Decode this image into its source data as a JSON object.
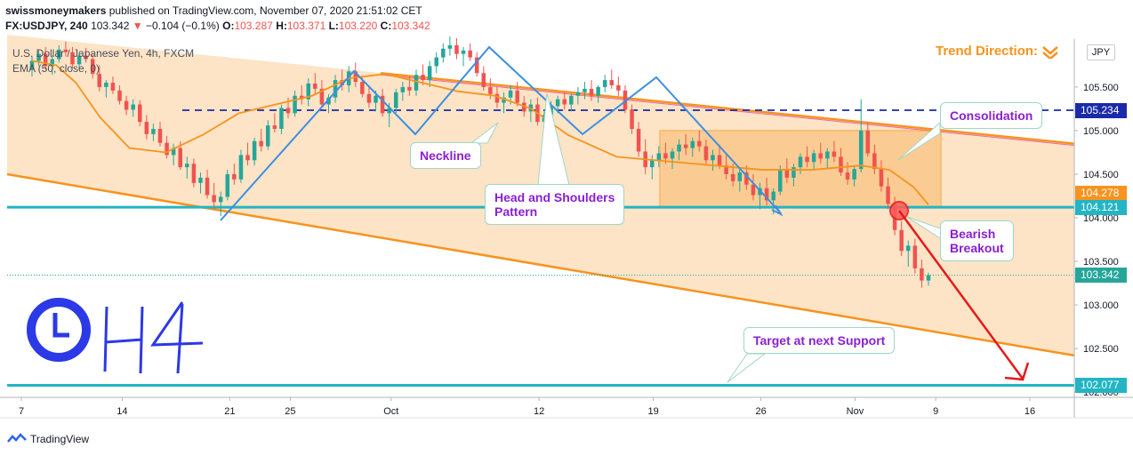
{
  "header": {
    "author": "swissmoneymakers",
    "published_text": "published on TradingView.com, November 07, 2020 21:51:02 CET",
    "symbol": "FX:USDJPY, 240",
    "last": "103.342",
    "change_arrow": "▼",
    "change": "−0.104 (−0.1%)",
    "o_label": "O:",
    "o_value": "103.287",
    "h_label": "H:",
    "h_value": "103.371",
    "l_label": "L:",
    "l_value": "103.220",
    "c_label": "C:",
    "c_value": "103.342"
  },
  "legend": {
    "series_title": "U.S. Dollar / Japanese Yen, 4h, FXCM",
    "indicator": "EMA (50, close, 0)"
  },
  "trend_direction": "Trend Direction:",
  "currency": "JPY",
  "branding": "TradingView",
  "timeframe_label": "H4",
  "colors": {
    "channel_fill": "#fde3c3",
    "channel_line": "#f7931e",
    "ema": "#f7931e",
    "pattern": "#3d8fe0",
    "support": "#23b5c3",
    "neckline": "#1a2aa8",
    "bull": "#26a69a",
    "bear": "#ef5350",
    "callout_text": "#8a1fd1",
    "arrow": "#e61919",
    "clock": "#2c39e6"
  },
  "annotations": {
    "neckline": "Neckline",
    "head_shoulders": "Head and Shoulders\nPattern",
    "consolidation": "Consolidation",
    "bearish_breakout": "Bearish\nBreakout",
    "target": "Target at next Support"
  },
  "price_tags": [
    {
      "value": "105.234",
      "color": "#1a2aa8"
    },
    {
      "value": "104.278",
      "color": "#f7931e"
    },
    {
      "value": "104.121",
      "color": "#23b5c3"
    },
    {
      "value": "103.342",
      "color": "#26a69a"
    },
    {
      "value": "102.077",
      "color": "#23b5c3"
    }
  ],
  "chart_data": {
    "type": "candlestick",
    "y_axis_ticks": [
      "105.500",
      "105.000",
      "104.500",
      "104.000",
      "103.500",
      "103.000",
      "102.500",
      "102.000"
    ],
    "x_axis_ticks": [
      "7",
      "14",
      "21",
      "25",
      "Oct",
      "12",
      "19",
      "26",
      "Nov",
      "9",
      "16"
    ],
    "ylim": [
      101.95,
      106.05
    ],
    "levels": {
      "neckline": 105.234,
      "support": 104.121,
      "target_support": 102.077,
      "ema_last": 104.278,
      "last": 103.342
    },
    "ema_50": [
      [
        0,
        105.8
      ],
      [
        10,
        105.75
      ],
      [
        18,
        105.55
      ],
      [
        28,
        105.15
      ],
      [
        40,
        104.8
      ],
      [
        55,
        104.75
      ],
      [
        70,
        104.95
      ],
      [
        85,
        105.2
      ],
      [
        100,
        105.3
      ],
      [
        115,
        105.4
      ],
      [
        130,
        105.6
      ],
      [
        145,
        105.65
      ],
      [
        160,
        105.55
      ],
      [
        175,
        105.45
      ],
      [
        190,
        105.4
      ],
      [
        205,
        105.25
      ],
      [
        220,
        104.95
      ],
      [
        240,
        104.7
      ],
      [
        260,
        104.65
      ],
      [
        280,
        104.6
      ],
      [
        300,
        104.55
      ],
      [
        320,
        104.55
      ],
      [
        340,
        104.6
      ],
      [
        352,
        104.55
      ],
      [
        362,
        104.35
      ],
      [
        368,
        104.15
      ]
    ],
    "candles": [
      [
        105.7,
        105.85,
        105.62,
        105.8
      ],
      [
        105.8,
        105.92,
        105.74,
        105.88
      ],
      [
        105.88,
        105.96,
        105.7,
        105.74
      ],
      [
        105.74,
        105.86,
        105.64,
        105.82
      ],
      [
        105.82,
        105.98,
        105.78,
        105.93
      ],
      [
        105.93,
        106.02,
        105.85,
        105.9
      ],
      [
        105.9,
        105.96,
        105.72,
        105.76
      ],
      [
        105.76,
        105.9,
        105.7,
        105.86
      ],
      [
        105.86,
        105.95,
        105.78,
        105.82
      ],
      [
        105.82,
        105.88,
        105.6,
        105.65
      ],
      [
        105.65,
        105.75,
        105.45,
        105.5
      ],
      [
        105.5,
        105.58,
        105.38,
        105.55
      ],
      [
        105.55,
        105.62,
        105.42,
        105.46
      ],
      [
        105.46,
        105.52,
        105.3,
        105.34
      ],
      [
        105.34,
        105.4,
        105.18,
        105.24
      ],
      [
        105.24,
        105.36,
        105.16,
        105.3
      ],
      [
        105.3,
        105.35,
        105.05,
        105.1
      ],
      [
        105.1,
        105.18,
        104.9,
        104.96
      ],
      [
        104.96,
        105.08,
        104.88,
        105.02
      ],
      [
        105.02,
        105.1,
        104.82,
        104.86
      ],
      [
        104.86,
        104.94,
        104.68,
        104.72
      ],
      [
        104.72,
        104.85,
        104.6,
        104.8
      ],
      [
        104.8,
        104.88,
        104.55,
        104.58
      ],
      [
        104.58,
        104.7,
        104.45,
        104.62
      ],
      [
        104.62,
        104.68,
        104.35,
        104.4
      ],
      [
        104.4,
        104.52,
        104.28,
        104.46
      ],
      [
        104.46,
        104.55,
        104.22,
        104.26
      ],
      [
        104.26,
        104.4,
        104.1,
        104.18
      ],
      [
        104.18,
        104.3,
        104.02,
        104.24
      ],
      [
        104.24,
        104.55,
        104.2,
        104.5
      ],
      [
        104.5,
        104.62,
        104.38,
        104.44
      ],
      [
        104.44,
        104.78,
        104.4,
        104.72
      ],
      [
        104.72,
        104.86,
        104.6,
        104.66
      ],
      [
        104.66,
        104.92,
        104.6,
        104.88
      ],
      [
        104.88,
        105.02,
        104.76,
        104.82
      ],
      [
        104.82,
        105.12,
        104.78,
        105.06
      ],
      [
        105.06,
        105.2,
        104.98,
        105.02
      ],
      [
        105.02,
        105.3,
        104.96,
        105.26
      ],
      [
        105.26,
        105.38,
        105.14,
        105.2
      ],
      [
        105.2,
        105.46,
        105.16,
        105.4
      ],
      [
        105.4,
        105.52,
        105.3,
        105.36
      ],
      [
        105.36,
        105.6,
        105.28,
        105.54
      ],
      [
        105.54,
        105.66,
        105.42,
        105.48
      ],
      [
        105.48,
        105.58,
        105.26,
        105.3
      ],
      [
        105.3,
        105.42,
        105.2,
        105.38
      ],
      [
        105.38,
        105.64,
        105.32,
        105.58
      ],
      [
        105.58,
        105.7,
        105.46,
        105.52
      ],
      [
        105.52,
        105.74,
        105.44,
        105.68
      ],
      [
        105.68,
        105.78,
        105.5,
        105.56
      ],
      [
        105.56,
        105.62,
        105.38,
        105.42
      ],
      [
        105.42,
        105.5,
        105.26,
        105.32
      ],
      [
        105.32,
        105.46,
        105.22,
        105.4
      ],
      [
        105.4,
        105.48,
        105.16,
        105.2
      ],
      [
        105.2,
        105.32,
        105.04,
        105.26
      ],
      [
        105.26,
        105.48,
        105.2,
        105.44
      ],
      [
        105.44,
        105.56,
        105.34,
        105.5
      ],
      [
        105.5,
        105.62,
        105.4,
        105.46
      ],
      [
        105.46,
        105.7,
        105.4,
        105.64
      ],
      [
        105.64,
        105.76,
        105.52,
        105.58
      ],
      [
        105.58,
        105.8,
        105.5,
        105.74
      ],
      [
        105.74,
        105.9,
        105.66,
        105.84
      ],
      [
        105.84,
        106.0,
        105.78,
        105.94
      ],
      [
        105.94,
        106.08,
        105.86,
        105.98
      ],
      [
        105.98,
        106.06,
        105.82,
        105.88
      ],
      [
        105.88,
        105.96,
        105.74,
        105.92
      ],
      [
        105.92,
        106.0,
        105.8,
        105.84
      ],
      [
        105.84,
        105.9,
        105.62,
        105.66
      ],
      [
        105.66,
        105.74,
        105.46,
        105.5
      ],
      [
        105.5,
        105.6,
        105.36,
        105.42
      ],
      [
        105.42,
        105.5,
        105.26,
        105.32
      ],
      [
        105.32,
        105.44,
        105.2,
        105.38
      ],
      [
        105.38,
        105.52,
        105.3,
        105.46
      ],
      [
        105.46,
        105.56,
        105.28,
        105.32
      ],
      [
        105.32,
        105.4,
        105.16,
        105.22
      ],
      [
        105.22,
        105.36,
        105.1,
        105.3
      ],
      [
        105.3,
        105.38,
        105.06,
        105.1
      ],
      [
        105.1,
        105.22,
        105.02,
        105.18
      ],
      [
        105.18,
        105.34,
        105.12,
        105.28
      ],
      [
        105.28,
        105.4,
        105.2,
        105.36
      ],
      [
        105.36,
        105.44,
        105.24,
        105.3
      ],
      [
        105.3,
        105.42,
        105.22,
        105.4
      ],
      [
        105.4,
        105.5,
        105.3,
        105.44
      ],
      [
        105.44,
        105.56,
        105.36,
        105.48
      ],
      [
        105.48,
        105.58,
        105.34,
        105.4
      ],
      [
        105.4,
        105.52,
        105.32,
        105.5
      ],
      [
        105.5,
        105.64,
        105.44,
        105.58
      ],
      [
        105.58,
        105.7,
        105.48,
        105.52
      ],
      [
        105.52,
        105.62,
        105.4,
        105.46
      ],
      [
        105.46,
        105.52,
        105.2,
        105.24
      ],
      [
        105.24,
        105.3,
        104.96,
        105.02
      ],
      [
        105.02,
        105.1,
        104.7,
        104.76
      ],
      [
        104.76,
        104.9,
        104.5,
        104.58
      ],
      [
        104.58,
        104.72,
        104.44,
        104.66
      ],
      [
        104.66,
        104.82,
        104.58,
        104.74
      ],
      [
        104.74,
        104.86,
        104.62,
        104.68
      ],
      [
        104.68,
        104.8,
        104.56,
        104.76
      ],
      [
        104.76,
        104.9,
        104.66,
        104.84
      ],
      [
        104.84,
        104.96,
        104.72,
        104.8
      ],
      [
        104.8,
        104.92,
        104.7,
        104.88
      ],
      [
        104.88,
        105.0,
        104.76,
        104.82
      ],
      [
        104.82,
        104.9,
        104.62,
        104.66
      ],
      [
        104.66,
        104.78,
        104.54,
        104.72
      ],
      [
        104.72,
        104.84,
        104.56,
        104.6
      ],
      [
        104.6,
        104.72,
        104.44,
        104.5
      ],
      [
        104.5,
        104.62,
        104.36,
        104.42
      ],
      [
        104.42,
        104.56,
        104.3,
        104.52
      ],
      [
        104.52,
        104.6,
        104.32,
        104.38
      ],
      [
        104.38,
        104.5,
        104.2,
        104.26
      ],
      [
        104.26,
        104.4,
        104.1,
        104.34
      ],
      [
        104.34,
        104.46,
        104.14,
        104.2
      ],
      [
        104.2,
        104.34,
        104.04,
        104.3
      ],
      [
        104.3,
        104.6,
        104.26,
        104.56
      ],
      [
        104.56,
        104.68,
        104.4,
        104.46
      ],
      [
        104.46,
        104.62,
        104.36,
        104.58
      ],
      [
        104.58,
        104.74,
        104.5,
        104.7
      ],
      [
        104.7,
        104.82,
        104.58,
        104.64
      ],
      [
        104.64,
        104.78,
        104.54,
        104.74
      ],
      [
        104.74,
        104.86,
        104.62,
        104.68
      ],
      [
        104.68,
        104.8,
        104.56,
        104.76
      ],
      [
        104.76,
        104.88,
        104.64,
        104.7
      ],
      [
        104.7,
        104.8,
        104.48,
        104.52
      ],
      [
        104.52,
        104.64,
        104.38,
        104.44
      ],
      [
        104.44,
        104.6,
        104.36,
        104.56
      ],
      [
        104.56,
        105.36,
        104.52,
        105.0
      ],
      [
        105.0,
        105.1,
        104.7,
        104.74
      ],
      [
        104.74,
        104.84,
        104.5,
        104.56
      ],
      [
        104.56,
        104.66,
        104.3,
        104.36
      ],
      [
        104.36,
        104.46,
        104.1,
        104.16
      ],
      [
        104.16,
        104.24,
        103.8,
        103.86
      ],
      [
        103.86,
        103.96,
        103.56,
        103.62
      ],
      [
        103.62,
        103.74,
        103.44,
        103.68
      ],
      [
        103.68,
        103.76,
        103.36,
        103.42
      ],
      [
        103.42,
        103.52,
        103.2,
        103.28
      ],
      [
        103.28,
        103.37,
        103.22,
        103.34
      ]
    ]
  }
}
